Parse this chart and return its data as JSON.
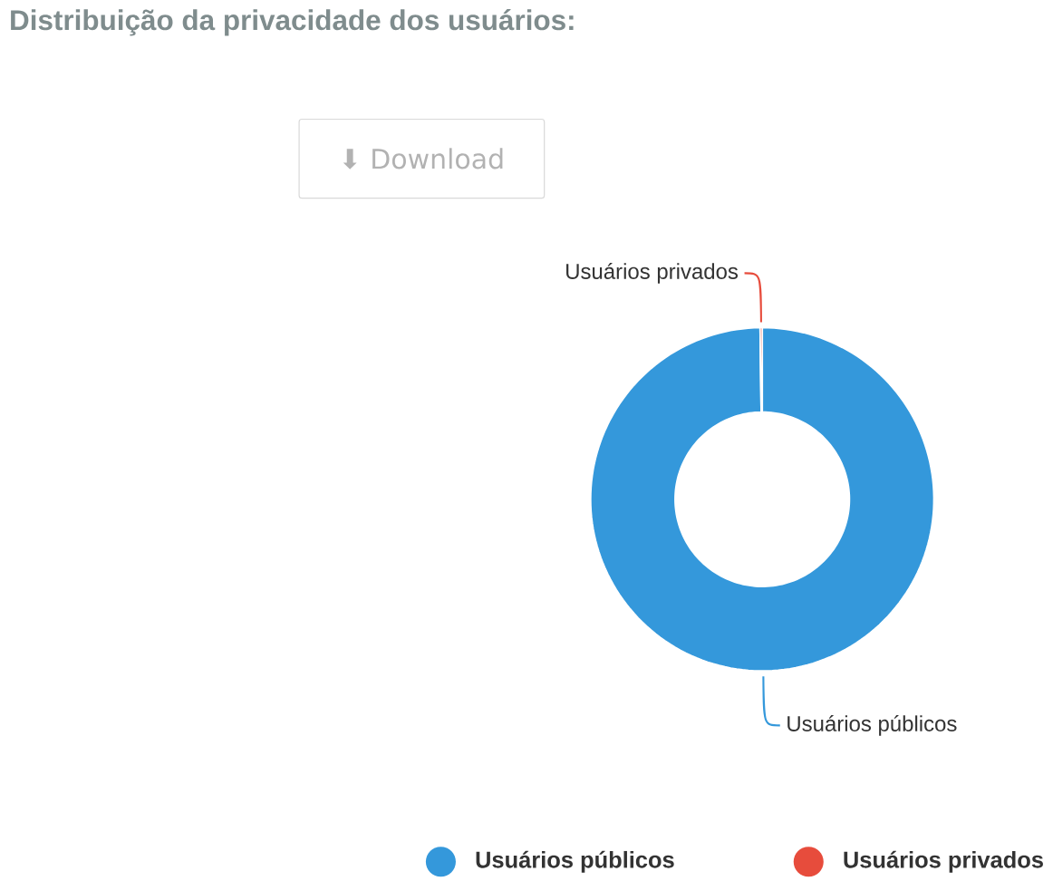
{
  "chart_data": {
    "type": "donut",
    "title": "Distribuição da privacidade dos usuários:",
    "categories": [
      "Usuários públicos",
      "Usuários privados"
    ],
    "values": [
      99.8,
      0.2
    ],
    "colors": [
      "#3498db",
      "#e74c3c"
    ],
    "legend": "bottom",
    "annotations": [
      "⬇ Download"
    ]
  }
}
